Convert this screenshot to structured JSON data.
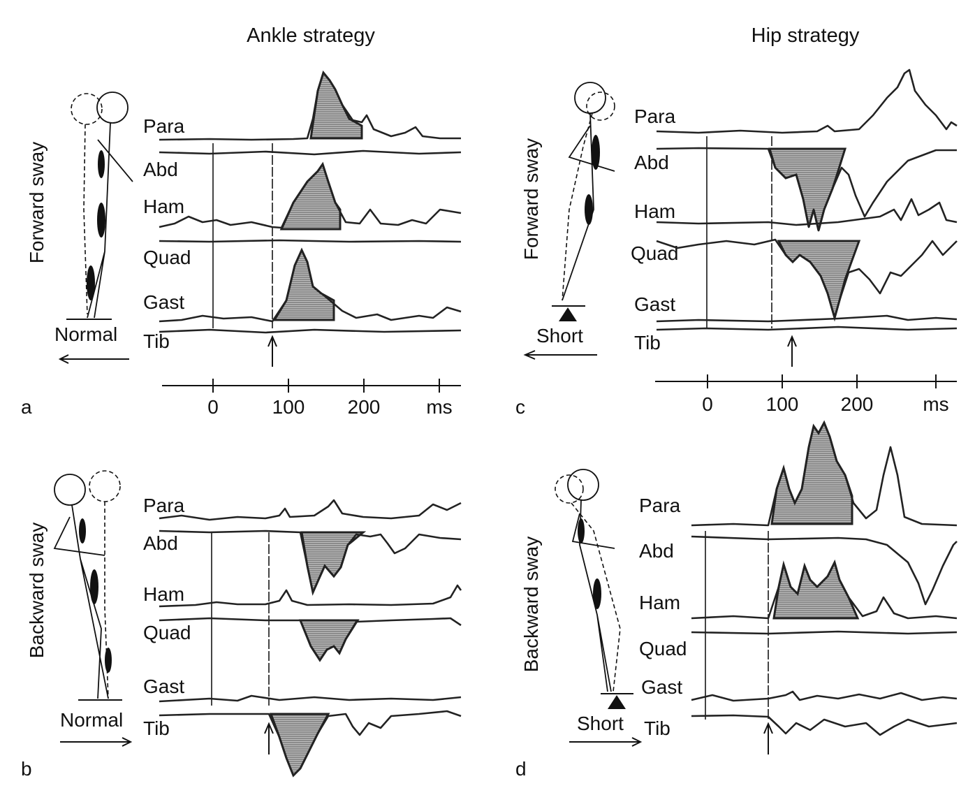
{
  "titles": {
    "ankle": "Ankle strategy",
    "hip": "Hip strategy"
  },
  "panels": {
    "a": {
      "letter": "a",
      "sway": "Forward sway",
      "surface": "Normal",
      "muscles": [
        "Para",
        "Abd",
        "Ham",
        "Quad",
        "Gast",
        "Tib"
      ]
    },
    "b": {
      "letter": "b",
      "sway": "Backward sway",
      "surface": "Normal",
      "muscles": [
        "Para",
        "Abd",
        "Ham",
        "Quad",
        "Gast",
        "Tib"
      ]
    },
    "c": {
      "letter": "c",
      "sway": "Forward sway",
      "surface": "Short",
      "muscles": [
        "Para",
        "Abd",
        "Ham",
        "Quad",
        "Gast",
        "Tib"
      ]
    },
    "d": {
      "letter": "d",
      "sway": "Backward sway",
      "surface": "Short",
      "muscles": [
        "Para",
        "Abd",
        "Ham",
        "Quad",
        "Gast",
        "Tib"
      ]
    }
  },
  "time_axis": {
    "ticks": [
      "0",
      "100",
      "200"
    ],
    "unit": "ms"
  },
  "colors": {
    "ink": "#111111",
    "shade": "#888888"
  }
}
